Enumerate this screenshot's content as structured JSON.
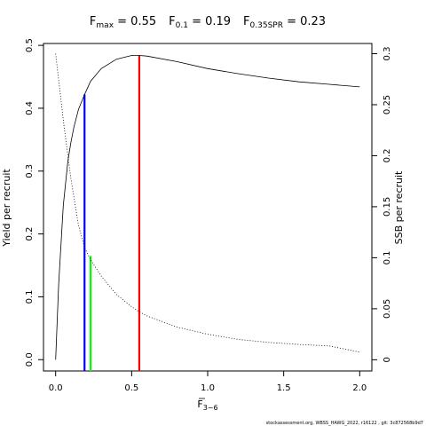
{
  "title": {
    "fmax_label": "F",
    "fmax_sub": "max",
    "fmax_value": " = 0.55",
    "f01_label": "F",
    "f01_sub": "0.1",
    "f01_value": " = 0.19",
    "fspr_label": "F",
    "fspr_sub": "0.35SPR",
    "fspr_value": " = 0.23"
  },
  "footer": "stockassessment.org, WBSS_HAWG_2022, r16122 , git: 3c872568b9d7",
  "chart_data": {
    "type": "line",
    "xlabel": "F",
    "xlabel_sub": "3−6",
    "ylabel_left": "Yield per recruit",
    "ylabel_right": "SSB per recruit",
    "xlim": [
      -0.08,
      2.08
    ],
    "ylim_left": [
      -0.018,
      0.503
    ],
    "ylim_right": [
      -0.011,
      0.31
    ],
    "x_ticks": [
      0.0,
      0.5,
      1.0,
      1.5,
      2.0
    ],
    "x_tick_labels": [
      "0.0",
      "0.5",
      "1.0",
      "1.5",
      "2.0"
    ],
    "y_left_ticks": [
      0.0,
      0.1,
      0.2,
      0.3,
      0.4,
      0.5
    ],
    "y_left_tick_labels": [
      "0.0",
      "0.1",
      "0.2",
      "0.3",
      "0.4",
      "0.5"
    ],
    "y_right_ticks": [
      0.0,
      0.05,
      0.1,
      0.15,
      0.2,
      0.25,
      0.3
    ],
    "y_right_tick_labels": [
      "0",
      "0.05",
      "0.1",
      "0.15",
      "0.2",
      "0.25",
      "0.3"
    ],
    "series": [
      {
        "axis": "left",
        "style": "solid",
        "x": [
          0.0,
          0.02,
          0.05,
          0.08,
          0.1,
          0.12,
          0.15,
          0.19,
          0.23,
          0.3,
          0.4,
          0.5,
          0.55,
          0.6,
          0.8,
          1.0,
          1.2,
          1.4,
          1.6,
          1.8,
          2.0
        ],
        "y": [
          0.0,
          0.12,
          0.245,
          0.315,
          0.345,
          0.37,
          0.398,
          0.422,
          0.443,
          0.463,
          0.478,
          0.484,
          0.484,
          0.483,
          0.474,
          0.463,
          0.455,
          0.448,
          0.442,
          0.438,
          0.434
        ]
      },
      {
        "axis": "right",
        "style": "dotted",
        "x": [
          0.0,
          0.05,
          0.1,
          0.15,
          0.19,
          0.23,
          0.3,
          0.4,
          0.5,
          0.55,
          0.6,
          0.8,
          1.0,
          1.2,
          1.4,
          1.6,
          1.8,
          2.0
        ],
        "y": [
          0.3,
          0.235,
          0.178,
          0.132,
          0.11,
          0.098,
          0.082,
          0.064,
          0.052,
          0.047,
          0.043,
          0.032,
          0.025,
          0.02,
          0.017,
          0.015,
          0.0135,
          0.0075
        ]
      }
    ],
    "reference_lines": [
      {
        "name": "Fmax",
        "x": 0.55,
        "y": 0.484,
        "color": "#ff0000"
      },
      {
        "name": "F0.1",
        "x": 0.19,
        "y": 0.422,
        "color": "#0000ff"
      },
      {
        "name": "F0.35SPR",
        "x": 0.23,
        "y": 0.165,
        "color": "#00ff00"
      }
    ],
    "grid": false
  }
}
